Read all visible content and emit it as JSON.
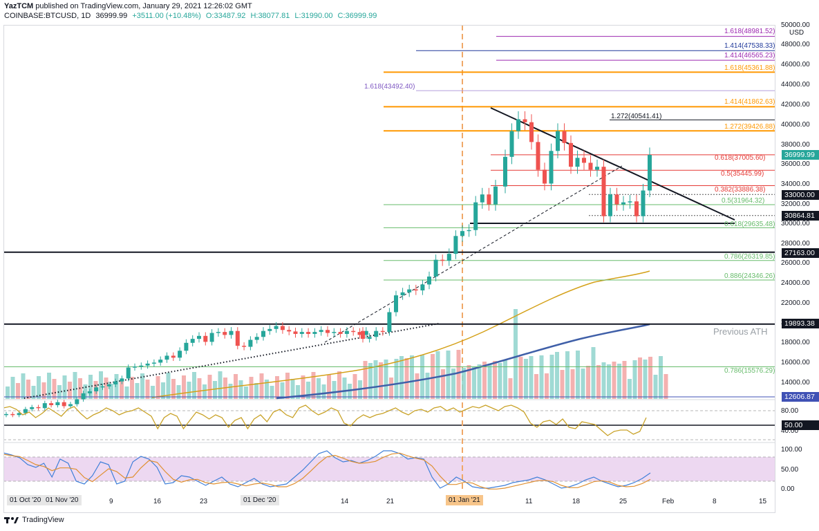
{
  "header": {
    "author": "YazTCM",
    "published_text": "published on TradingView.com, January 29, 2021 12:26:02 GMT",
    "symbol": "COINBASE:BTCUSD, 1D",
    "last": "36999.99",
    "change": "+3511.00 (+10.48%)",
    "open": "O:33487.92",
    "high": "H:38077.81",
    "low": "L:31990.00",
    "close": "C:36999.99"
  },
  "axis": {
    "currency": "USD",
    "price_ticks": [
      "50000.00",
      "48000.00",
      "46000.00",
      "44000.00",
      "42000.00",
      "40000.00",
      "38000.00",
      "36000.00",
      "34000.00",
      "32000.00",
      "30000.00",
      "28000.00",
      "26000.00",
      "24000.00",
      "22000.00",
      "20000.00",
      "18000.00",
      "16000.00",
      "14000.00"
    ],
    "rsi_ticks": [
      "80.00",
      "40.00"
    ],
    "stoch_ticks": [
      "100.00",
      "50.00",
      "0.00"
    ],
    "date_ticks": [
      "01 Oct '20",
      "01 Nov '20",
      "9",
      "16",
      "23",
      "01 Dec '20",
      "14",
      "21",
      "01 Jan '21",
      "11",
      "18",
      "25",
      "Feb",
      "8",
      "15"
    ]
  },
  "price_boxes": {
    "last": "36999.99",
    "p33000": "33000.00",
    "p30864": "30864.81",
    "p27163": "27163.00",
    "p19893": "19893.38",
    "p12606": "12606.87",
    "rsi50": "50.00"
  },
  "fib_labels": {
    "f48981": "1.618(48981.52)",
    "f47538": "1.414(47538.33)",
    "f46565": "1.414(46565.23)",
    "f45361": "1.618(45361.88)",
    "f43492": "1.618(43492.40)",
    "f41862": "1.414(41862.63)",
    "f40541": "1.272(40541.41)",
    "f39426": "1.272(39426.88)",
    "f37005": "0.618(37005.60)",
    "f35445": "0.5(35445.99)",
    "f33886": "0.382(33886.38)",
    "f31964": "0.5(31964.32)",
    "f29635": "0.618(29635.48)",
    "f26319": "0.786(26319.85)",
    "f24346": "0.886(24346.26)",
    "f15576": "0.786(15576.29)"
  },
  "annotations": {
    "previous_ath": "Previous ATH"
  },
  "footer": {
    "brand": "TradingView"
  },
  "colors": {
    "up": "#26a69a",
    "down": "#ef5350",
    "orange": "#ff9800",
    "purple": "#9c27b0",
    "navy": "#1e3799",
    "green_fib": "#66bb6a",
    "red_fib": "#e53935",
    "ma_gold": "#d4a017",
    "ma_blue": "#3f5fa8",
    "stoch_fill": "#e1bee7"
  }
}
